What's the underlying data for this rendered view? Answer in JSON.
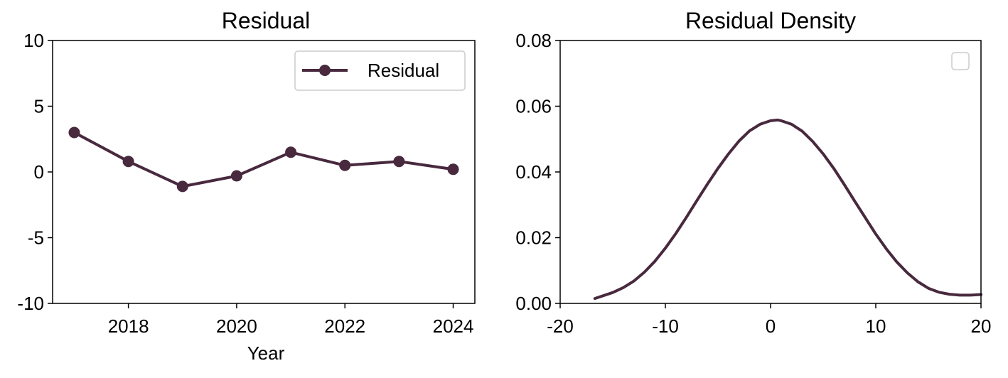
{
  "colors": {
    "series": "#48293e",
    "axis": "#000000",
    "legend_border": "#cccccc"
  },
  "chart_data": [
    {
      "type": "line",
      "title": "Residual",
      "xlabel": "Year",
      "ylabel": "",
      "xlim": [
        2016.6,
        2024.4
      ],
      "ylim": [
        -10,
        10
      ],
      "xticks": [
        2018,
        2020,
        2022,
        2024
      ],
      "xtick_labels": [
        "2018",
        "2020",
        "2022",
        "2024"
      ],
      "yticks": [
        10,
        5,
        0,
        -5,
        -10
      ],
      "ytick_labels": [
        "10",
        "5",
        "0",
        "-5",
        "-10"
      ],
      "grid": false,
      "legend_position": "top-right",
      "series": [
        {
          "name": "Residual",
          "marker": "circle",
          "x": [
            2017,
            2018,
            2019,
            2020,
            2021,
            2022,
            2023,
            2024
          ],
          "y": [
            3.0,
            0.8,
            -1.1,
            -0.3,
            1.5,
            0.5,
            0.8,
            0.2
          ]
        }
      ]
    },
    {
      "type": "line",
      "title": "Residual Density",
      "xlabel": "",
      "ylabel": "",
      "xlim": [
        -20,
        20
      ],
      "ylim": [
        0,
        0.08
      ],
      "xticks": [
        -20,
        -10,
        0,
        10,
        20
      ],
      "xtick_labels": [
        "-20",
        "-10",
        "0",
        "10",
        "20"
      ],
      "yticks": [
        0.08,
        0.06,
        0.04,
        0.02,
        0.0
      ],
      "ytick_labels": [
        "0.08",
        "0.06",
        "0.04",
        "0.02",
        "0.00"
      ],
      "grid": false,
      "legend_position": "top-right",
      "legend_empty": true,
      "series": [
        {
          "x": [
            -16.7,
            -15,
            -14,
            -13,
            -12,
            -11,
            -10,
            -9,
            -8,
            -7,
            -6,
            -5,
            -4,
            -3,
            -2,
            -1,
            0,
            0.7,
            1,
            2,
            3,
            4,
            5,
            6,
            7,
            8,
            9,
            10,
            11,
            12,
            13,
            14,
            15,
            16,
            17,
            18,
            19,
            20
          ],
          "y": [
            0.0015,
            0.0033,
            0.0048,
            0.0068,
            0.0095,
            0.0128,
            0.0168,
            0.0213,
            0.0262,
            0.0313,
            0.0363,
            0.0411,
            0.0455,
            0.0494,
            0.0525,
            0.0545,
            0.0556,
            0.0558,
            0.0556,
            0.0545,
            0.0524,
            0.0493,
            0.0455,
            0.0411,
            0.0362,
            0.0311,
            0.0261,
            0.0211,
            0.0166,
            0.0126,
            0.0093,
            0.0066,
            0.0046,
            0.0034,
            0.0028,
            0.0025,
            0.0025,
            0.0027
          ]
        }
      ]
    }
  ]
}
